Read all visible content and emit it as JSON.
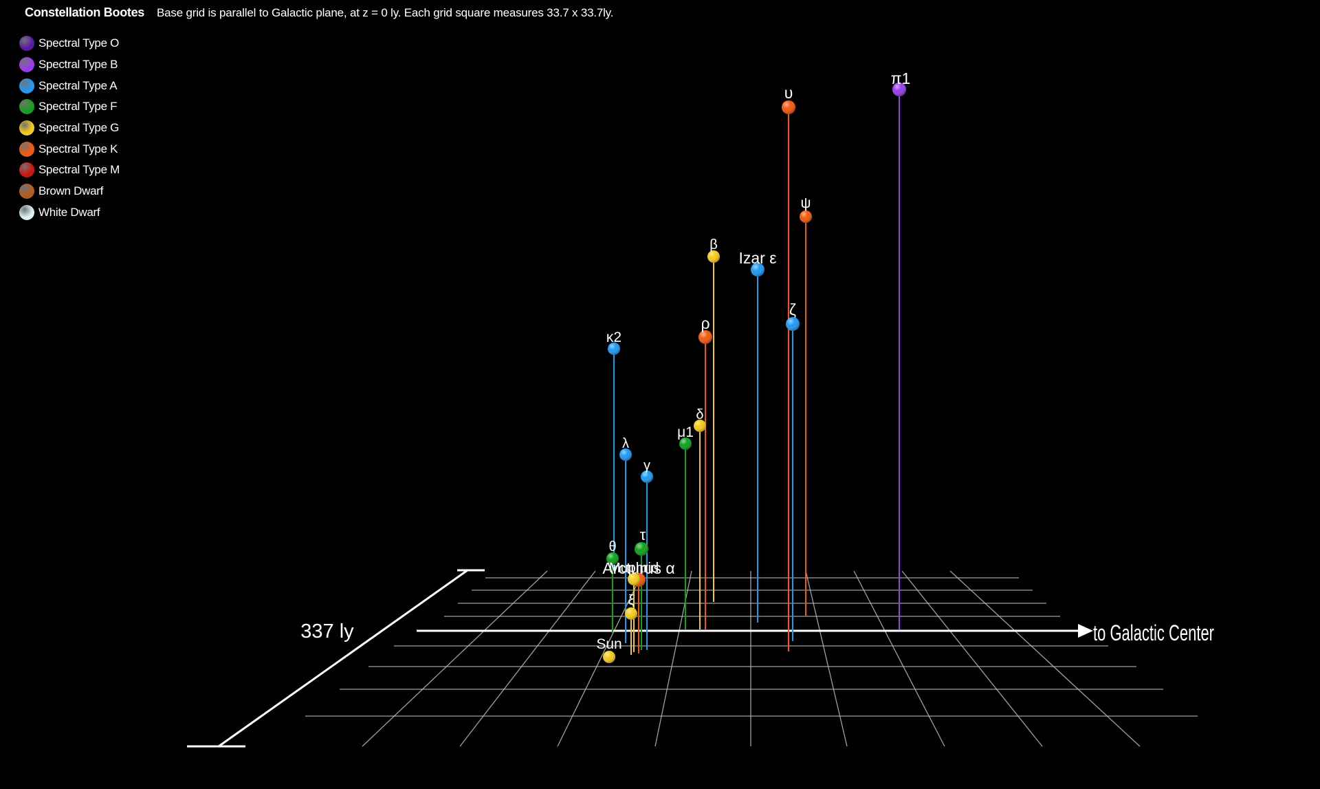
{
  "header": {
    "title": "Constellation Bootes",
    "subtitle": "Base grid is parallel to Galactic plane, at z = 0 ly. Each grid square measures 33.7 x 33.7ly."
  },
  "legend": [
    {
      "label": "Spectral Type O",
      "color": "#5b1aa6",
      "icon": "purple-sphere-icon"
    },
    {
      "label": "Spectral Type B",
      "color": "#9a3bee",
      "icon": "violet-sphere-icon"
    },
    {
      "label": "Spectral Type A",
      "color": "#1e9af2",
      "icon": "blue-sphere-icon"
    },
    {
      "label": "Spectral Type F",
      "color": "#12a11c",
      "icon": "green-sphere-icon"
    },
    {
      "label": "Spectral Type G",
      "color": "#f4cb1c",
      "icon": "yellow-sphere-icon"
    },
    {
      "label": "Spectral Type K",
      "color": "#f25a10",
      "icon": "orange-sphere-icon"
    },
    {
      "label": "Spectral Type M",
      "color": "#d0140e",
      "icon": "red-sphere-icon"
    },
    {
      "label": "Brown Dwarf",
      "color": "#b35d1c",
      "icon": "brown-sphere-icon"
    },
    {
      "label": "White Dwarf",
      "color": "#d8f2f4",
      "icon": "white-sphere-icon"
    }
  ],
  "axes": {
    "scale_label": "337 ly",
    "direction_label": "to Galactic Center"
  },
  "stars": [
    {
      "name": "π1",
      "type": "B"
    },
    {
      "name": "υ",
      "type": "K"
    },
    {
      "name": "ψ",
      "type": "K"
    },
    {
      "name": "β",
      "type": "G"
    },
    {
      "name": "Izar ε",
      "type": "A"
    },
    {
      "name": "ζ",
      "type": "A"
    },
    {
      "name": "ρ",
      "type": "K"
    },
    {
      "name": "κ2",
      "type": "A"
    },
    {
      "name": "δ",
      "type": "G"
    },
    {
      "name": "μ1",
      "type": "F"
    },
    {
      "name": "λ",
      "type": "A"
    },
    {
      "name": "γ",
      "type": "A"
    },
    {
      "name": "θ",
      "type": "F"
    },
    {
      "name": "τ",
      "type": "F"
    },
    {
      "name": "Arcturus α",
      "type": "K"
    },
    {
      "name": "ξ",
      "type": "G"
    },
    {
      "name": "Muphrid",
      "type": "G"
    },
    {
      "name": "Sun",
      "type": "G"
    }
  ]
}
